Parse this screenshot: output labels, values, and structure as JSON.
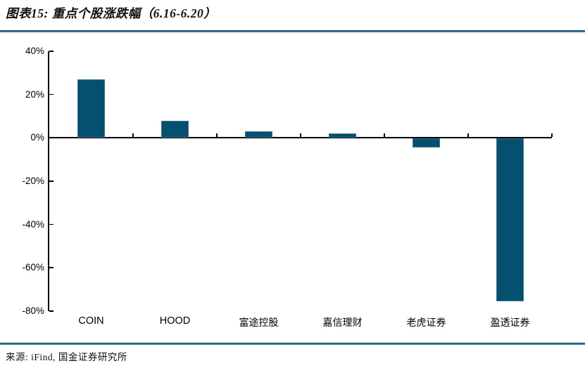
{
  "title": "图表15: 重点个股涨跌幅（6.16-6.20）",
  "source": "来源: iFind, 国金证券研究所",
  "colors": {
    "bar": "#06506f",
    "divider_rule": "#35759b",
    "axis": "#000000"
  },
  "chart_data": {
    "type": "bar",
    "title": "重点个股涨跌幅（6.16-6.20）",
    "categories": [
      "COIN",
      "HOOD",
      "富途控股",
      "嘉信理财",
      "老虎证券",
      "盈透证券"
    ],
    "values": [
      27,
      8,
      3,
      2,
      -4,
      -75
    ],
    "unit": "%",
    "xlabel": "",
    "ylabel": "",
    "ylim": [
      -80,
      40
    ],
    "ytick_step": 20,
    "ytick_labels": [
      "40%",
      "20%",
      "0%",
      "-20%",
      "-40%",
      "-60%",
      "-80%"
    ],
    "grid": false,
    "legend": "none",
    "bar_color": "#06506f"
  }
}
